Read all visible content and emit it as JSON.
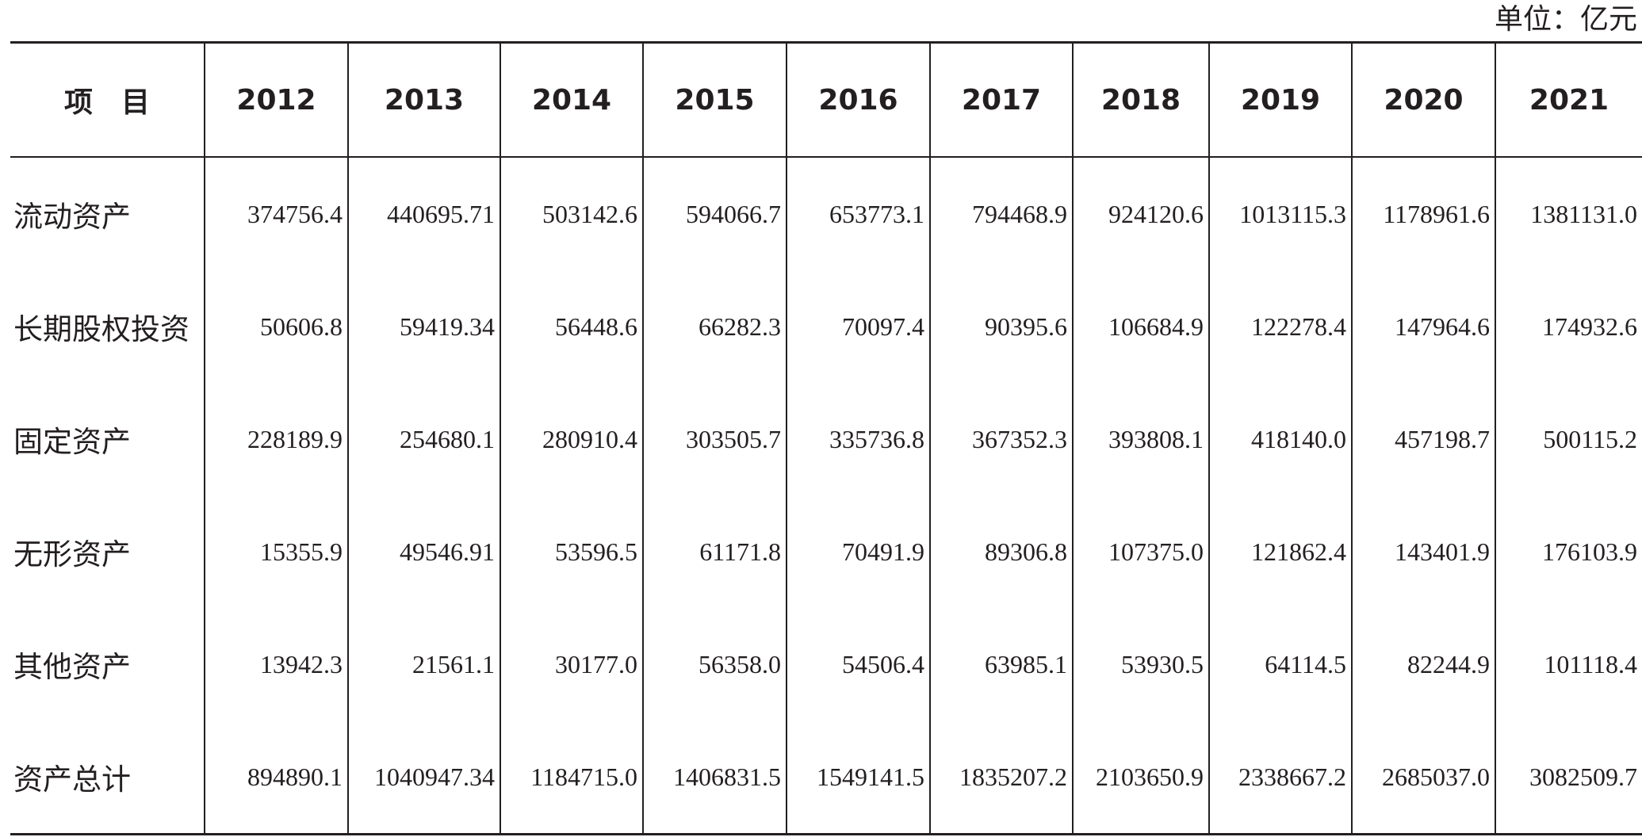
{
  "unit": "单位：亿元",
  "table": {
    "header": [
      "项　目",
      "2012",
      "2013",
      "2014",
      "2015",
      "2016",
      "2017",
      "2018",
      "2019",
      "2020",
      "2021"
    ],
    "rows": [
      [
        "流动资产",
        "374756.4",
        "440695.71",
        "503142.6",
        "594066.7",
        "653773.1",
        "794468.9",
        "924120.6",
        "1013115.3",
        "1178961.6",
        "1381131.0"
      ],
      [
        "长期股权投资",
        "50606.8",
        "59419.34",
        "56448.6",
        "66282.3",
        "70097.4",
        "90395.6",
        "106684.9",
        "122278.4",
        "147964.6",
        "174932.6"
      ],
      [
        "固定资产",
        "228189.9",
        "254680.1",
        "280910.4",
        "303505.7",
        "335736.8",
        "367352.3",
        "393808.1",
        "418140.0",
        "457198.7",
        "500115.2"
      ],
      [
        "无形资产",
        "15355.9",
        "49546.91",
        "53596.5",
        "61171.8",
        "70491.9",
        "89306.8",
        "107375.0",
        "121862.4",
        "143401.9",
        "176103.9"
      ],
      [
        "其他资产",
        "13942.3",
        "21561.1",
        "30177.0",
        "56358.0",
        "54506.4",
        "63985.1",
        "53930.5",
        "64114.5",
        "82244.9",
        "101118.4"
      ],
      [
        "资产总计",
        "894890.1",
        "1040947.34",
        "1184715.0",
        "1406831.5",
        "1549141.5",
        "1835207.2",
        "2103650.9",
        "2338667.2",
        "2685037.0",
        "3082509.7"
      ]
    ]
  }
}
